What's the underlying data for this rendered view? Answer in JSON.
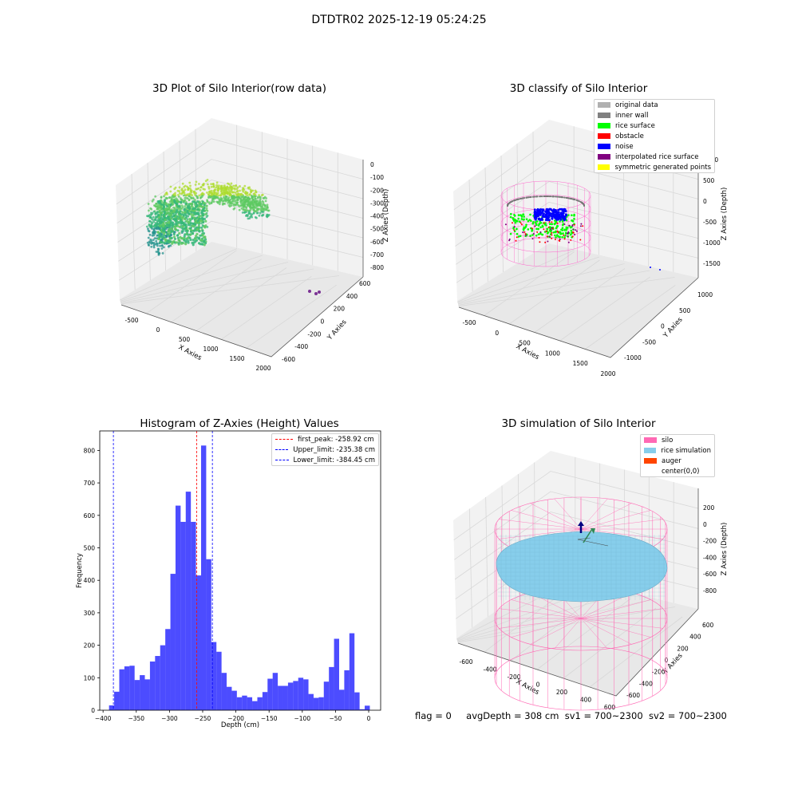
{
  "title": "DTDTR02 2025-12-19 05:24:25",
  "status": {
    "flag": "flag = 0",
    "avg_depth": "avgDepth = 308 cm",
    "sv1": "sv1 = 700~2300",
    "sv2": "sv2 = 700~2300"
  },
  "chart_data": [
    {
      "type": "scatter",
      "title": "3D Plot of Silo Interior(row data)",
      "xlabel": "X Axies",
      "ylabel": "Y Axies",
      "zlabel": "Z Axies (Depth)",
      "x_ticks": [
        "-500",
        "0",
        "500",
        "1000",
        "1500",
        "2000"
      ],
      "y_ticks": [
        "-600",
        "-400",
        "-200",
        "0",
        "200",
        "400",
        "600"
      ],
      "z_ticks": [
        "0",
        "-100",
        "-200",
        "-300",
        "-400",
        "-500",
        "-600",
        "-700",
        "-800"
      ],
      "xlim": [
        -600,
        2000
      ],
      "ylim": [
        -600,
        600
      ],
      "zlim": [
        -850,
        50
      ],
      "colormap": "viridis"
    },
    {
      "type": "scatter",
      "title": "3D classify of Silo Interior",
      "xlabel": "X Axies",
      "ylabel": "Y Axies",
      "zlabel": "Z Axies (Depth)",
      "x_ticks": [
        "-500",
        "0",
        "500",
        "1000",
        "1500",
        "2000"
      ],
      "y_ticks": [
        "-1000",
        "-500",
        "0",
        "500",
        "1000"
      ],
      "z_ticks": [
        "1000",
        "500",
        "0",
        "-500",
        "-1000",
        "-1500"
      ],
      "legend": [
        {
          "label": "original data",
          "color": "#b0b0b0"
        },
        {
          "label": "inner wall",
          "color": "#808080"
        },
        {
          "label": "rice surface",
          "color": "#00ff00"
        },
        {
          "label": "obstacle",
          "color": "#ff0000"
        },
        {
          "label": "noise",
          "color": "#0000ff"
        },
        {
          "label": "interpolated rice surface",
          "color": "#800080"
        },
        {
          "label": "symmetric generated points",
          "color": "#ffff00"
        }
      ],
      "legend_position": "top-right"
    },
    {
      "type": "bar",
      "title": "Histogram of Z-Axies (Height) Values",
      "xlabel": "Depth (cm)",
      "ylabel": "Frequency",
      "xlim": [
        -405,
        18
      ],
      "ylim": [
        0,
        860
      ],
      "x_ticks": [
        -400,
        -350,
        -300,
        -250,
        -200,
        -150,
        -100,
        -50,
        0
      ],
      "y_ticks": [
        0,
        100,
        200,
        300,
        400,
        500,
        600,
        700,
        800
      ],
      "bin_start": -391,
      "bin_width": 7.7,
      "values": [
        15,
        57,
        126,
        135,
        137,
        93,
        108,
        95,
        150,
        167,
        200,
        250,
        420,
        630,
        580,
        673,
        580,
        415,
        815,
        465,
        210,
        180,
        115,
        72,
        60,
        40,
        45,
        40,
        28,
        40,
        56,
        97,
        115,
        75,
        75,
        85,
        90,
        100,
        95,
        50,
        38,
        40,
        88,
        133,
        220,
        63,
        123,
        237,
        55,
        3,
        14
      ],
      "bar_color": "#0000ff",
      "vlines": [
        {
          "label": "first_peak: -258.92 cm",
          "x": -258.92,
          "color": "#ff0000"
        },
        {
          "label": "Upper_limit: -235.38 cm",
          "x": -235.38,
          "color": "#0000ff"
        },
        {
          "label": "Lower_limit: -384.45 cm",
          "x": -384.45,
          "color": "#0000ff"
        }
      ],
      "legend_position": "top-right"
    },
    {
      "type": "surface",
      "title": "3D simulation of Silo Interior",
      "xlabel": "X Axies",
      "ylabel": "Y Axies",
      "zlabel": "Z Axies (Depth)",
      "x_ticks": [
        "-600",
        "-400",
        "-200",
        "0",
        "200",
        "400",
        "600"
      ],
      "y_ticks": [
        "-600",
        "-400",
        "-200",
        "0",
        "200",
        "400",
        "600"
      ],
      "z_ticks": [
        "200",
        "0",
        "-200",
        "-400",
        "-600",
        "-800"
      ],
      "legend": [
        {
          "label": "silo",
          "color": "#ff69b4"
        },
        {
          "label": "rice simulation",
          "color": "#87ceeb"
        },
        {
          "label": "auger",
          "color": "#ff4500"
        },
        {
          "label": "center(0,0)",
          "color": "#ffffff"
        }
      ],
      "legend_position": "top-right"
    }
  ]
}
